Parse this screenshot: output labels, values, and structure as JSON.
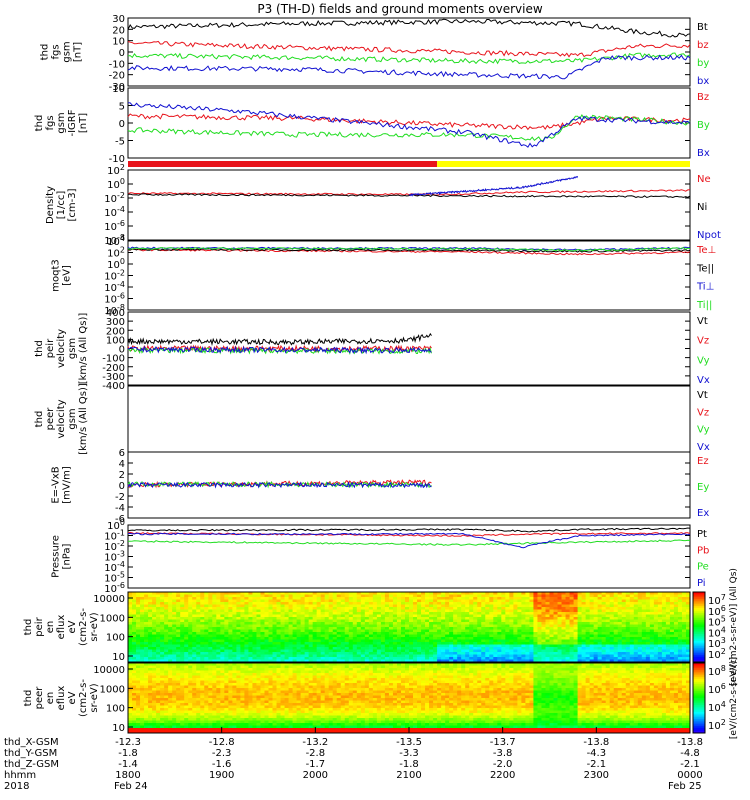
{
  "title": "P3 (TH-D) fields and ground moments overview",
  "colors": {
    "black": "#000000",
    "red": "#e8141c",
    "green": "#22dd22",
    "blue": "#1010d0",
    "yellow": "#ffff00"
  },
  "chart_data": [
    {
      "id": "p1",
      "type": "line",
      "ylabel": [
        "thd",
        "fgs",
        "gsm",
        "[nT]"
      ],
      "ylim": [
        -30,
        30
      ],
      "yticks": [
        30,
        20,
        10,
        0,
        -10,
        -20,
        -30
      ],
      "series": [
        {
          "name": "Bt",
          "color": "black",
          "approx": [
            [
              0,
              22
            ],
            [
              0.3,
              25
            ],
            [
              0.6,
              27
            ],
            [
              0.8,
              25
            ],
            [
              0.9,
              18
            ],
            [
              1,
              14
            ]
          ]
        },
        {
          "name": "bz",
          "color": "red",
          "approx": [
            [
              0,
              8
            ],
            [
              0.3,
              4
            ],
            [
              0.6,
              0
            ],
            [
              0.8,
              -3
            ],
            [
              0.9,
              5
            ],
            [
              1,
              6
            ]
          ]
        },
        {
          "name": "by",
          "color": "green",
          "approx": [
            [
              0,
              -3
            ],
            [
              0.3,
              -5
            ],
            [
              0.6,
              -8
            ],
            [
              0.8,
              -8
            ],
            [
              0.9,
              -3
            ],
            [
              1,
              -2
            ]
          ]
        },
        {
          "name": "bx",
          "color": "blue",
          "approx": [
            [
              0,
              -14
            ],
            [
              0.3,
              -15
            ],
            [
              0.6,
              -20
            ],
            [
              0.78,
              -22
            ],
            [
              0.85,
              -5
            ],
            [
              1,
              -5
            ]
          ]
        }
      ]
    },
    {
      "id": "p2",
      "type": "line",
      "ylabel": [
        "thd",
        "fgs",
        "gsm",
        "-IGRF",
        "[nT]"
      ],
      "ylim": [
        -15,
        15
      ],
      "yticks": [
        10,
        5,
        0,
        -5,
        -10
      ],
      "series": [
        {
          "name": "Bz",
          "color": "red",
          "approx": [
            [
              0,
              3
            ],
            [
              0.3,
              2
            ],
            [
              0.6,
              -1
            ],
            [
              0.75,
              -2
            ],
            [
              0.85,
              2
            ],
            [
              1,
              1
            ]
          ]
        },
        {
          "name": "By",
          "color": "green",
          "approx": [
            [
              0,
              -3
            ],
            [
              0.3,
              -5
            ],
            [
              0.6,
              -5
            ],
            [
              0.75,
              -7
            ],
            [
              0.8,
              3
            ],
            [
              1,
              0
            ]
          ]
        },
        {
          "name": "Bx",
          "color": "blue",
          "approx": [
            [
              0,
              8
            ],
            [
              0.2,
              5
            ],
            [
              0.6,
              -4
            ],
            [
              0.72,
              -10
            ],
            [
              0.8,
              2
            ],
            [
              1,
              0
            ]
          ]
        }
      ]
    },
    {
      "id": "p3",
      "type": "line",
      "ylabel": [
        "Density",
        "[1/cc]",
        "[cm-3]"
      ],
      "scale": "log",
      "ylim": [
        -9,
        3
      ],
      "yticks": [
        "10^2",
        "10^0",
        "10^-2",
        "10^-4",
        "10^-6",
        "10^-8"
      ],
      "series": [
        {
          "name": "Ne",
          "color": "red",
          "approx": [
            [
              0,
              -1
            ],
            [
              0.55,
              -1.2
            ],
            [
              0.7,
              -0.8
            ],
            [
              1,
              -0.5
            ]
          ]
        },
        {
          "name": "Ni",
          "color": "black",
          "approx": [
            [
              0,
              -1.2
            ],
            [
              0.55,
              -1.4
            ],
            [
              0.7,
              -1.5
            ],
            [
              1,
              -1.6
            ]
          ]
        },
        {
          "name": "Npot",
          "color": "blue",
          "approx": [
            [
              0.5,
              -1.3
            ],
            [
              0.7,
              0
            ],
            [
              0.8,
              1.8
            ]
          ]
        }
      ]
    },
    {
      "id": "p4",
      "type": "line",
      "ylabel": [
        "moqt3",
        "[eV]"
      ],
      "scale": "log",
      "ylim": [
        -9,
        5
      ],
      "yticks": [
        "10^4",
        "10^2",
        "10^0",
        "10^-2",
        "10^-4",
        "10^-6",
        "10^-8"
      ],
      "series": [
        {
          "name": "Te⊥",
          "color": "red",
          "approx": [
            [
              0,
              3.2
            ],
            [
              0.6,
              2.8
            ],
            [
              0.8,
              2.3
            ],
            [
              1,
              2.7
            ]
          ]
        },
        {
          "name": "Te||",
          "color": "black",
          "approx": [
            [
              0,
              3.3
            ],
            [
              0.6,
              3.1
            ],
            [
              0.8,
              2.9
            ],
            [
              1,
              3.1
            ]
          ]
        },
        {
          "name": "Ti⊥",
          "color": "blue",
          "approx": [
            [
              0,
              3.6
            ],
            [
              0.6,
              3.5
            ],
            [
              0.8,
              3.2
            ],
            [
              1,
              3.6
            ]
          ]
        },
        {
          "name": "Ti||",
          "color": "green",
          "approx": [
            [
              0,
              3.5
            ],
            [
              0.6,
              3.4
            ],
            [
              0.8,
              3.1
            ],
            [
              1,
              3.5
            ]
          ]
        }
      ]
    },
    {
      "id": "p5",
      "type": "line",
      "ylabel": [
        "thd",
        "peir",
        "velocity",
        "gsm",
        "[km/s (All Qs)]"
      ],
      "ylim": [
        -400,
        400
      ],
      "yticks": [
        400,
        300,
        200,
        100,
        0,
        -100,
        -200,
        -300,
        -400
      ],
      "series": [
        {
          "name": "Vt",
          "color": "black",
          "approx": [
            [
              0,
              80
            ],
            [
              0.3,
              70
            ],
            [
              0.5,
              90
            ],
            [
              0.54,
              150
            ]
          ]
        },
        {
          "name": "Vz",
          "color": "red",
          "approx": [
            [
              0,
              0
            ],
            [
              0.54,
              0
            ]
          ]
        },
        {
          "name": "Vy",
          "color": "green",
          "approx": [
            [
              0,
              -20
            ],
            [
              0.54,
              -30
            ]
          ]
        },
        {
          "name": "Vx",
          "color": "blue",
          "approx": [
            [
              0,
              -10
            ],
            [
              0.54,
              -20
            ]
          ]
        }
      ]
    },
    {
      "id": "p6",
      "type": "line",
      "ylabel": [
        "thd",
        "peer",
        "velocity",
        "gsm",
        "[km/s (All Qs)]"
      ],
      "series": [
        {
          "name": "Vt",
          "color": "black"
        },
        {
          "name": "Vz",
          "color": "red"
        },
        {
          "name": "Vy",
          "color": "green"
        },
        {
          "name": "Vx",
          "color": "blue"
        }
      ]
    },
    {
      "id": "p7",
      "type": "line",
      "ylabel": [
        "E=-VxB",
        "[mV/m]"
      ],
      "ylim": [
        -6,
        6
      ],
      "yticks": [
        6,
        4,
        2,
        0,
        -2,
        -4,
        -6
      ],
      "series": [
        {
          "name": "Ez",
          "color": "red",
          "approx": [
            [
              0,
              0
            ],
            [
              0.54,
              0.5
            ]
          ]
        },
        {
          "name": "Ey",
          "color": "green",
          "approx": [
            [
              0,
              0.2
            ],
            [
              0.54,
              0
            ]
          ]
        },
        {
          "name": "Ex",
          "color": "blue",
          "approx": [
            [
              0,
              0
            ],
            [
              0.54,
              0
            ]
          ]
        }
      ]
    },
    {
      "id": "p8",
      "type": "line",
      "ylabel": [
        "Pressure",
        "[nPa]"
      ],
      "scale": "log",
      "ylim": [
        -7,
        0
      ],
      "yticks": [
        "10^0",
        "10^-1",
        "10^-2",
        "10^-3",
        "10^-4",
        "10^-5",
        "10^-6"
      ],
      "series": [
        {
          "name": "Pt",
          "color": "black",
          "approx": [
            [
              0,
              -0.6
            ],
            [
              0.6,
              -0.5
            ],
            [
              0.72,
              -0.7
            ],
            [
              0.8,
              -0.5
            ],
            [
              1,
              -0.4
            ]
          ]
        },
        {
          "name": "Pb",
          "color": "red",
          "approx": [
            [
              0,
              -0.9
            ],
            [
              0.6,
              -1.2
            ],
            [
              0.72,
              -1.0
            ],
            [
              1,
              -0.9
            ]
          ]
        },
        {
          "name": "Pe",
          "color": "green",
          "approx": [
            [
              0,
              -1.8
            ],
            [
              0.6,
              -2.2
            ],
            [
              0.72,
              -2.0
            ],
            [
              1,
              -1.7
            ]
          ]
        },
        {
          "name": "Pi",
          "color": "blue",
          "approx": [
            [
              0,
              -1.0
            ],
            [
              0.6,
              -1.0
            ],
            [
              0.7,
              -2.5
            ],
            [
              0.8,
              -1.2
            ],
            [
              1,
              -1.0
            ]
          ]
        }
      ]
    },
    {
      "id": "p9",
      "type": "heatmap",
      "ylabel": [
        "thd",
        "peir",
        "en",
        "eflux",
        "eV",
        "(cm2-s-",
        "sr-eV)"
      ],
      "scale": "log",
      "yticks": [
        "10000",
        "1000",
        "100",
        "10"
      ],
      "colorbar": {
        "ticks": [
          "10^7",
          "10^6",
          "10^5",
          "10^4",
          "10^3",
          "10^2"
        ],
        "label": "[eV/(cm2-s-sr-eV)] (All Qs)"
      }
    },
    {
      "id": "p10",
      "type": "heatmap",
      "ylabel": [
        "thd",
        "peer",
        "en",
        "eflux",
        "eV",
        "(cm2-s-",
        "sr-eV)"
      ],
      "scale": "log",
      "yticks": [
        "10000",
        "1000",
        "100",
        "10"
      ],
      "colorbar": {
        "ticks": [
          "10^8",
          "10^6",
          "10^4",
          "10^2"
        ],
        "label": "[eV/(cm2-s-sr-eV)]"
      }
    }
  ],
  "flags_bar": {
    "segments": [
      {
        "color": "red",
        "from": 0,
        "to": 0.55
      },
      {
        "color": "yellow",
        "from": 0.55,
        "to": 1
      }
    ]
  },
  "x_axis": {
    "labels": [
      "thd_X-GSM",
      "thd_Y-GSM",
      "thd_Z-GSM",
      "hhmm",
      "2018"
    ],
    "rows": [
      [
        "-12.3",
        "-12.8",
        "-13.2",
        "-13.5",
        "-13.7",
        "-13.8",
        "-13.8"
      ],
      [
        "-1.8",
        "-2.3",
        "-2.8",
        "-3.3",
        "-3.8",
        "-4.3",
        "-4.8"
      ],
      [
        "-1.4",
        "-1.6",
        "-1.7",
        "-1.8",
        "-2.0",
        "-2.1",
        "-2.1"
      ],
      [
        "1800",
        "1900",
        "2000",
        "2100",
        "2200",
        "2300",
        "0000"
      ]
    ],
    "dates": {
      "left": "Feb 24",
      "right": "Feb 25"
    }
  }
}
